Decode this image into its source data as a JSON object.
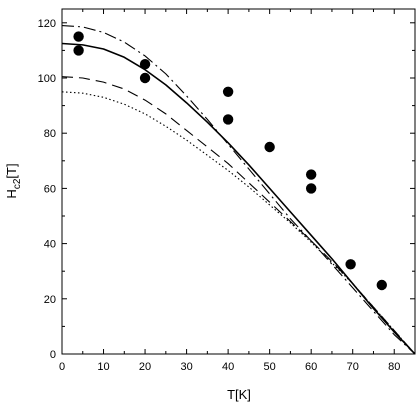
{
  "chart_data": {
    "type": "line",
    "title": "",
    "xlabel": "T[K]",
    "ylabel": {
      "main": "H",
      "subscript": "c2",
      "suffix": "[T]"
    },
    "xlim": [
      0,
      85
    ],
    "ylim": [
      0,
      125
    ],
    "xticks": [
      0,
      10,
      20,
      30,
      40,
      50,
      60,
      70,
      80
    ],
    "yticks": [
      0,
      20,
      40,
      60,
      80,
      100,
      120
    ],
    "grid": false,
    "legend": "none",
    "series": [
      {
        "style": "dashdot",
        "x": [
          0,
          5,
          10,
          15,
          20,
          25,
          30,
          35,
          40,
          45,
          50,
          55,
          60,
          65,
          70,
          75,
          80,
          85
        ],
        "y": [
          119,
          118.5,
          116.5,
          113,
          108,
          101.5,
          93.5,
          85,
          76,
          67,
          58,
          49,
          41,
          32.5,
          24,
          15.5,
          7,
          0
        ]
      },
      {
        "style": "solid",
        "x": [
          0,
          5,
          10,
          15,
          20,
          25,
          30,
          35,
          40,
          45,
          50,
          55,
          60,
          65,
          70,
          75,
          80,
          85
        ],
        "y": [
          112.5,
          112,
          110.5,
          107.5,
          103,
          97.5,
          91,
          84,
          76.5,
          68.5,
          60,
          51.5,
          43,
          34.5,
          25.5,
          16.5,
          8,
          0
        ]
      },
      {
        "style": "dashed",
        "x": [
          0,
          5,
          10,
          15,
          20,
          25,
          30,
          35,
          40,
          45,
          50,
          55,
          60,
          65,
          70,
          75,
          80,
          85
        ],
        "y": [
          100.5,
          100,
          98.5,
          96,
          92,
          87,
          81,
          75,
          69,
          62,
          55,
          48,
          41,
          33.5,
          25.5,
          17,
          8.5,
          0
        ]
      },
      {
        "style": "dotted",
        "x": [
          0,
          5,
          10,
          15,
          20,
          25,
          30,
          35,
          40,
          45,
          50,
          55,
          60,
          65,
          70,
          75,
          80,
          85
        ],
        "y": [
          95,
          94.5,
          93,
          90.5,
          87,
          82.5,
          77.5,
          72,
          66.5,
          60.5,
          54,
          47.5,
          40.5,
          33,
          25.5,
          17,
          8.5,
          0
        ]
      }
    ],
    "points": {
      "x": [
        4,
        4,
        20,
        20,
        40,
        40,
        50,
        60,
        60,
        69.5,
        77
      ],
      "y": [
        115,
        110,
        105,
        100,
        95,
        85,
        75,
        65,
        60,
        32.5,
        25
      ]
    }
  }
}
